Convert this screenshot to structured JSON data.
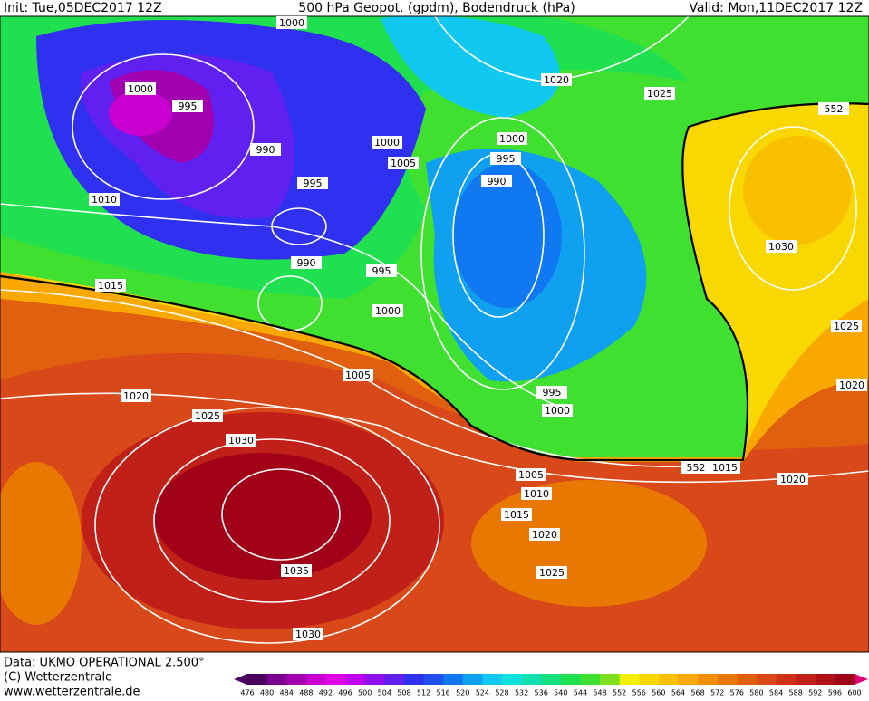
{
  "header": {
    "init": "Init: Tue,05DEC2017 12Z",
    "title": "500 hPa Geopot. (gpdm), Bodendruck (hPa)",
    "valid": "Valid: Mon,11DEC2017 12Z"
  },
  "isobar_labels": [
    1000,
    1000,
    995,
    1020,
    1025,
    552,
    1000,
    1000,
    1005,
    995,
    990,
    995,
    990,
    1010,
    1030,
    990,
    995,
    1015,
    1000,
    1025,
    1005,
    995,
    1020,
    1020,
    1000,
    1025,
    1030,
    1005,
    552,
    1015,
    1020,
    1010,
    1015,
    1020,
    1025,
    1035,
    1030
  ],
  "footer": {
    "data": "Data: UKMO OPERATIONAL 2.500°",
    "copyright": "(C) Wetterzentrale",
    "url": "www.wetterzentrale.de"
  },
  "scale": {
    "values": [
      476,
      480,
      484,
      488,
      492,
      496,
      500,
      504,
      508,
      512,
      516,
      520,
      524,
      528,
      532,
      536,
      540,
      544,
      548,
      552,
      556,
      560,
      564,
      568,
      572,
      576,
      580,
      584,
      588,
      592,
      596,
      600
    ],
    "colors": [
      "#4b0060",
      "#7a0090",
      "#a000b0",
      "#c800d0",
      "#e000e8",
      "#c000f0",
      "#9010f0",
      "#6020f0",
      "#3030f0",
      "#2050f0",
      "#1078f0",
      "#10a0f0",
      "#10c8f0",
      "#10e0e0",
      "#10e0b0",
      "#10e080",
      "#20e050",
      "#40e030",
      "#80e020",
      "#f0f000",
      "#f8d800",
      "#f8c000",
      "#f8a800",
      "#f09000",
      "#e87800",
      "#e06010",
      "#d84818",
      "#d03018",
      "#c02018",
      "#b01018",
      "#a00018",
      "#e0007a"
    ]
  }
}
